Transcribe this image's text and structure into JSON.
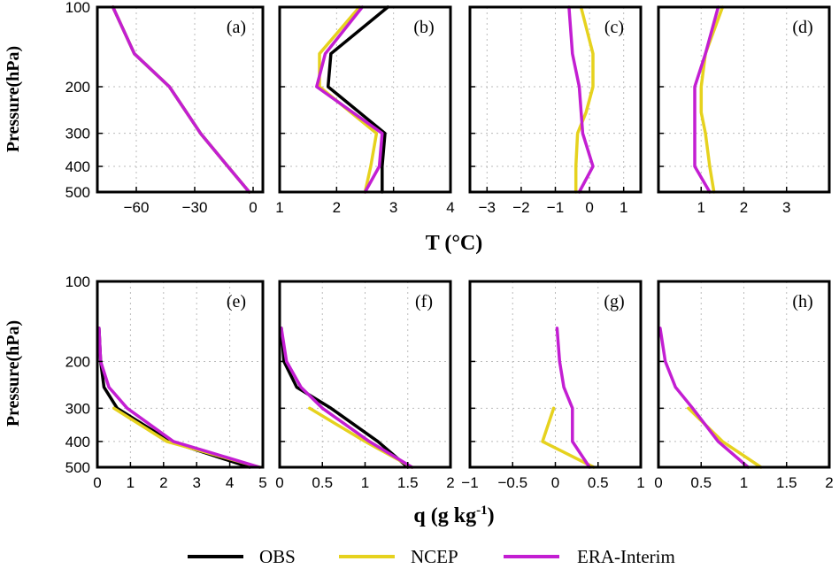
{
  "colors": {
    "obs": "#000000",
    "ncep": "#e6d21e",
    "era": "#c31ed2"
  },
  "legend": [
    {
      "key": "obs",
      "label": "OBS"
    },
    {
      "key": "ncep",
      "label": "NCEP"
    },
    {
      "key": "era",
      "label": "ERA-Interim"
    }
  ],
  "axis_titles": {
    "ylabel_top": "Pressure(hPa)",
    "ylabel_bottom": "Pressure(hPa)",
    "xlabel_top": "T (°C)",
    "xlabel_bottom_main": "q (g kg",
    "xlabel_bottom_sup": "-1",
    "xlabel_bottom_close": ")"
  },
  "y_ticks": [
    "100",
    "200",
    "300",
    "400",
    "500"
  ],
  "chart_data": [
    {
      "type": "line",
      "panel": "(a)",
      "row": 0,
      "col": 0,
      "xlim": [
        -80,
        5
      ],
      "ylim": [
        100,
        500
      ],
      "xticks": [
        -60,
        -30,
        0
      ],
      "xlabel": "T (°C)",
      "ylabel": "Pressure(hPa)",
      "series": [
        {
          "name": "OBS",
          "key": "obs",
          "points": [
            [
              -2,
              500
            ],
            [
              -13,
              400
            ],
            [
              -27,
              300
            ],
            [
              -43,
              200
            ],
            [
              -61,
              150
            ],
            [
              -72,
              100
            ]
          ]
        },
        {
          "name": "NCEP",
          "key": "ncep",
          "points": [
            [
              -2,
              500
            ],
            [
              -13,
              400
            ],
            [
              -27,
              300
            ],
            [
              -43,
              200
            ],
            [
              -61,
              150
            ],
            [
              -72,
              100
            ]
          ]
        },
        {
          "name": "ERA-Interim",
          "key": "era",
          "points": [
            [
              -2,
              500
            ],
            [
              -13,
              400
            ],
            [
              -27,
              300
            ],
            [
              -43,
              200
            ],
            [
              -61,
              150
            ],
            [
              -72,
              100
            ]
          ]
        }
      ]
    },
    {
      "type": "line",
      "panel": "(b)",
      "row": 0,
      "col": 1,
      "xlim": [
        1,
        4
      ],
      "ylim": [
        100,
        500
      ],
      "xticks": [
        1,
        2,
        3,
        4
      ],
      "series": [
        {
          "name": "OBS",
          "key": "obs",
          "points": [
            [
              2.8,
              500
            ],
            [
              2.8,
              400
            ],
            [
              2.85,
              300
            ],
            [
              1.85,
              200
            ],
            [
              1.9,
              150
            ],
            [
              2.9,
              100
            ]
          ]
        },
        {
          "name": "NCEP",
          "key": "ncep",
          "points": [
            [
              2.5,
              500
            ],
            [
              2.6,
              400
            ],
            [
              2.7,
              300
            ],
            [
              1.7,
              200
            ],
            [
              1.7,
              150
            ],
            [
              2.4,
              100
            ]
          ]
        },
        {
          "name": "ERA-Interim",
          "key": "era",
          "points": [
            [
              2.5,
              500
            ],
            [
              2.75,
              400
            ],
            [
              2.8,
              300
            ],
            [
              1.65,
              200
            ],
            [
              1.8,
              150
            ],
            [
              2.45,
              100
            ]
          ]
        }
      ]
    },
    {
      "type": "line",
      "panel": "(c)",
      "row": 0,
      "col": 2,
      "xlim": [
        -3.5,
        1.5
      ],
      "ylim": [
        100,
        500
      ],
      "xticks": [
        -3,
        -2,
        -1,
        0,
        1
      ],
      "series": [
        {
          "name": "NCEP",
          "key": "ncep",
          "points": [
            [
              -0.4,
              500
            ],
            [
              -0.4,
              400
            ],
            [
              -0.35,
              300
            ],
            [
              -0.1,
              250
            ],
            [
              0.1,
              200
            ],
            [
              0.1,
              150
            ],
            [
              -0.25,
              100
            ]
          ]
        },
        {
          "name": "ERA-Interim",
          "key": "era",
          "points": [
            [
              -0.3,
              500
            ],
            [
              0.1,
              400
            ],
            [
              -0.2,
              300
            ],
            [
              -0.3,
              200
            ],
            [
              -0.5,
              150
            ],
            [
              -0.6,
              100
            ]
          ]
        }
      ]
    },
    {
      "type": "line",
      "panel": "(d)",
      "row": 0,
      "col": 3,
      "xlim": [
        0,
        4
      ],
      "ylim": [
        100,
        500
      ],
      "xticks": [
        1,
        2,
        3
      ],
      "series": [
        {
          "name": "NCEP",
          "key": "ncep",
          "points": [
            [
              1.3,
              500
            ],
            [
              1.2,
              400
            ],
            [
              1.1,
              300
            ],
            [
              1.0,
              250
            ],
            [
              1.0,
              200
            ],
            [
              1.1,
              150
            ],
            [
              1.5,
              100
            ]
          ]
        },
        {
          "name": "ERA-Interim",
          "key": "era",
          "points": [
            [
              1.2,
              500
            ],
            [
              0.85,
              400
            ],
            [
              0.85,
              300
            ],
            [
              0.85,
              250
            ],
            [
              0.85,
              200
            ],
            [
              1.1,
              150
            ],
            [
              1.4,
              100
            ]
          ]
        }
      ]
    },
    {
      "type": "line",
      "panel": "(e)",
      "row": 1,
      "col": 0,
      "xlim": [
        0,
        5
      ],
      "ylim": [
        100,
        500
      ],
      "xticks": [
        0,
        1,
        2,
        3,
        4,
        5
      ],
      "xlabel": "q (g kg-1)",
      "ylabel": "Pressure(hPa)",
      "series": [
        {
          "name": "OBS",
          "key": "obs",
          "points": [
            [
              4.6,
              500
            ],
            [
              2.2,
              400
            ],
            [
              0.6,
              300
            ],
            [
              0.2,
              250
            ],
            [
              0.1,
              200
            ],
            [
              0.05,
              150
            ]
          ]
        },
        {
          "name": "NCEP",
          "key": "ncep",
          "points": [
            [
              4.9,
              500
            ],
            [
              2.1,
              400
            ],
            [
              0.5,
              300
            ]
          ]
        },
        {
          "name": "ERA-Interim",
          "key": "era",
          "points": [
            [
              4.9,
              500
            ],
            [
              2.3,
              400
            ],
            [
              0.9,
              300
            ],
            [
              0.35,
              250
            ],
            [
              0.1,
              200
            ],
            [
              0.05,
              150
            ]
          ]
        }
      ]
    },
    {
      "type": "line",
      "panel": "(f)",
      "row": 1,
      "col": 1,
      "xlim": [
        0,
        2
      ],
      "ylim": [
        100,
        500
      ],
      "xticks": [
        0,
        0.5,
        1,
        1.5,
        2
      ],
      "series": [
        {
          "name": "OBS",
          "key": "obs",
          "points": [
            [
              1.5,
              500
            ],
            [
              1.15,
              400
            ],
            [
              0.6,
              300
            ],
            [
              0.2,
              250
            ],
            [
              0.05,
              200
            ],
            [
              0.02,
              150
            ]
          ]
        },
        {
          "name": "NCEP",
          "key": "ncep",
          "points": [
            [
              1.55,
              500
            ],
            [
              1.0,
              400
            ],
            [
              0.35,
              300
            ]
          ]
        },
        {
          "name": "ERA-Interim",
          "key": "era",
          "points": [
            [
              1.55,
              500
            ],
            [
              1.05,
              400
            ],
            [
              0.5,
              300
            ],
            [
              0.25,
              250
            ],
            [
              0.08,
              200
            ],
            [
              0.02,
              150
            ]
          ]
        }
      ]
    },
    {
      "type": "line",
      "panel": "(g)",
      "row": 1,
      "col": 2,
      "xlim": [
        -1,
        1
      ],
      "ylim": [
        100,
        500
      ],
      "xticks": [
        -1,
        -0.5,
        0,
        0.5,
        1
      ],
      "series": [
        {
          "name": "NCEP",
          "key": "ncep",
          "points": [
            [
              0.45,
              500
            ],
            [
              -0.15,
              400
            ],
            [
              -0.02,
              300
            ]
          ]
        },
        {
          "name": "ERA-Interim",
          "key": "era",
          "points": [
            [
              0.4,
              500
            ],
            [
              0.2,
              400
            ],
            [
              0.2,
              300
            ],
            [
              0.1,
              250
            ],
            [
              0.05,
              200
            ],
            [
              0.02,
              150
            ]
          ]
        }
      ]
    },
    {
      "type": "line",
      "panel": "(h)",
      "row": 1,
      "col": 3,
      "xlim": [
        0,
        2
      ],
      "ylim": [
        100,
        500
      ],
      "xticks": [
        0,
        0.5,
        1,
        1.5,
        2
      ],
      "series": [
        {
          "name": "NCEP",
          "key": "ncep",
          "points": [
            [
              1.2,
              500
            ],
            [
              0.75,
              400
            ],
            [
              0.35,
              300
            ]
          ]
        },
        {
          "name": "ERA-Interim",
          "key": "era",
          "points": [
            [
              1.05,
              500
            ],
            [
              0.7,
              400
            ],
            [
              0.4,
              300
            ],
            [
              0.2,
              250
            ],
            [
              0.08,
              200
            ],
            [
              0.02,
              150
            ]
          ]
        }
      ]
    }
  ]
}
